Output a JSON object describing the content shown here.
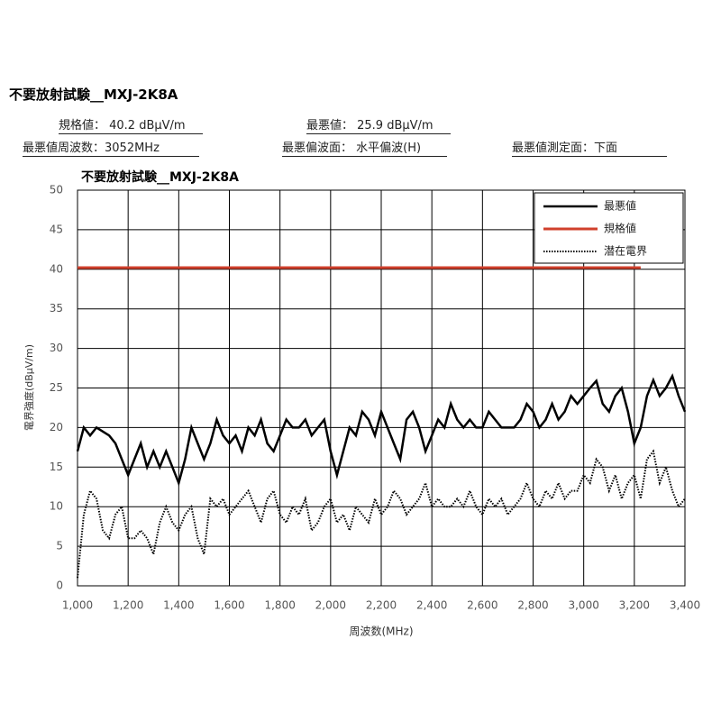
{
  "header": {
    "title": "不要放射試験__MXJ-2K8A",
    "items": [
      "規格値： 40.2 dBμV/m",
      "最悪値： 25.9 dBμV/m",
      "最悪値周波数：3052MHz",
      "最悪偏波面： 水平偏波(H)",
      "最悪値測定面：下面"
    ]
  },
  "chart_data": {
    "type": "line",
    "title": "不要放射試験__MXJ-2K8A",
    "x_label": "周波数(MHz)",
    "y_label": "電界強度(dBμV/m)",
    "xlim": [
      1000,
      3400
    ],
    "xticks": [
      {
        "value": 1000,
        "label": "1,000"
      },
      {
        "value": 1200,
        "label": "1,200"
      },
      {
        "value": 1400,
        "label": "1,400"
      },
      {
        "value": 1600,
        "label": "1,600"
      },
      {
        "value": 1800,
        "label": "1,800"
      },
      {
        "value": 2000,
        "label": "2,000"
      },
      {
        "value": 2200,
        "label": "2,200"
      },
      {
        "value": 2400,
        "label": "2,400"
      },
      {
        "value": 2600,
        "label": "2,600"
      },
      {
        "value": 2800,
        "label": "2,800"
      },
      {
        "value": 3000,
        "label": "3,000"
      },
      {
        "value": 3200,
        "label": "3,200"
      },
      {
        "value": 3400,
        "label": "3,400"
      }
    ],
    "ylim": [
      0,
      50
    ],
    "yticks": [
      0,
      5,
      10,
      15,
      20,
      25,
      30,
      35,
      40,
      45,
      50
    ],
    "grid": true,
    "legend": "upper right",
    "x": [
      1000,
      1025,
      1050,
      1075,
      1100,
      1125,
      1150,
      1175,
      1200,
      1225,
      1250,
      1275,
      1300,
      1325,
      1350,
      1375,
      1400,
      1425,
      1450,
      1475,
      1500,
      1525,
      1550,
      1575,
      1600,
      1625,
      1650,
      1675,
      1700,
      1725,
      1750,
      1775,
      1800,
      1825,
      1850,
      1875,
      1900,
      1925,
      1950,
      1975,
      2000,
      2025,
      2050,
      2075,
      2100,
      2125,
      2150,
      2175,
      2200,
      2225,
      2250,
      2275,
      2300,
      2325,
      2350,
      2375,
      2400,
      2425,
      2450,
      2475,
      2500,
      2525,
      2550,
      2575,
      2600,
      2625,
      2650,
      2675,
      2700,
      2725,
      2750,
      2775,
      2800,
      2825,
      2850,
      2875,
      2900,
      2925,
      2950,
      2975,
      3000,
      3025,
      3050,
      3075,
      3100,
      3125,
      3150,
      3175,
      3200,
      3225,
      3250,
      3275,
      3300,
      3325,
      3350,
      3375,
      3400
    ],
    "series": [
      {
        "name": "最悪値",
        "color": "#000000",
        "line_style": "solid",
        "values": [
          17,
          20,
          19,
          20,
          19.5,
          19,
          18,
          16,
          14,
          16,
          18,
          15,
          17,
          15,
          17,
          15,
          13,
          16,
          20,
          18,
          16,
          18,
          21,
          19,
          18,
          19,
          17,
          20,
          19,
          21,
          18,
          17,
          19,
          21,
          20,
          20,
          21,
          19,
          20,
          21,
          17,
          14,
          17,
          20,
          19,
          22,
          21,
          19,
          22,
          20,
          18,
          16,
          21,
          22,
          20,
          17,
          19,
          21,
          20,
          23,
          21,
          20,
          21,
          20,
          20,
          22,
          21,
          20,
          20,
          20,
          21,
          23,
          22,
          20,
          21,
          23,
          21,
          22,
          24,
          23,
          24,
          25,
          25.9,
          23,
          22,
          24,
          25,
          22,
          18,
          20,
          24,
          26,
          24,
          25,
          26.5,
          24,
          22
        ]
      },
      {
        "name": "規格値",
        "color": "#d0402c",
        "line_style": "solid",
        "x": [
          1000,
          3225
        ],
        "values": [
          40.2,
          40.2
        ]
      },
      {
        "name": "潜在電界",
        "color": "#000000",
        "line_style": "dotted",
        "values": [
          1,
          9,
          12,
          11,
          7,
          6,
          9,
          10,
          6,
          6,
          7,
          6,
          4,
          8,
          10,
          8,
          7,
          9,
          10,
          6,
          4,
          11,
          10,
          11,
          9,
          10,
          11,
          12,
          10,
          8,
          11,
          12,
          9,
          8,
          10,
          9,
          11,
          7,
          8,
          10,
          11,
          8,
          9,
          7,
          10,
          9,
          8,
          11,
          9,
          10,
          12,
          11,
          9,
          10,
          11,
          13,
          10,
          11,
          10,
          10,
          11,
          10,
          12,
          10,
          9,
          11,
          10,
          11,
          9,
          10,
          11,
          13,
          11,
          10,
          12,
          11,
          13,
          11,
          12,
          12,
          14,
          13,
          16,
          15,
          12,
          14,
          11,
          13,
          14,
          11,
          16,
          17,
          13,
          15,
          12,
          10,
          11
        ]
      }
    ]
  }
}
